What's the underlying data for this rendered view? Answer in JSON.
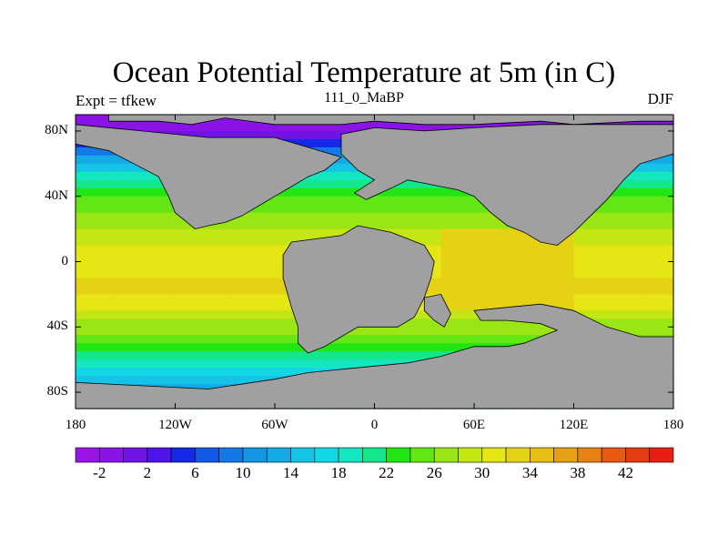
{
  "title": "Ocean Potential Temperature at 5m (in C)",
  "subtitle_left": "Expt = tfkew",
  "subtitle_center": "111_0_MaBP",
  "subtitle_right": "DJF",
  "land_color": "#a0a0a0",
  "lat_ticks": [
    {
      "lat": 80,
      "label": "80N"
    },
    {
      "lat": 40,
      "label": "40N"
    },
    {
      "lat": 0,
      "label": "0"
    },
    {
      "lat": -40,
      "label": "40S"
    },
    {
      "lat": -80,
      "label": "80S"
    }
  ],
  "lon_ticks": [
    {
      "lon": -180,
      "label": "180"
    },
    {
      "lon": -120,
      "label": "120W"
    },
    {
      "lon": -60,
      "label": "60W"
    },
    {
      "lon": 0,
      "label": "0"
    },
    {
      "lon": 60,
      "label": "60E"
    },
    {
      "lon": 120,
      "label": "120E"
    },
    {
      "lon": 180,
      "label": "180"
    }
  ],
  "colorbar": {
    "colors": [
      "#9a14e6",
      "#8a14e6",
      "#7014e6",
      "#4f14e6",
      "#1428e6",
      "#1459e6",
      "#1478e6",
      "#1496e6",
      "#14aae6",
      "#14c3e6",
      "#14d7e6",
      "#14e6c0",
      "#14e68c",
      "#22e614",
      "#62e614",
      "#9ae614",
      "#c3e614",
      "#e6e614",
      "#e6d214",
      "#e6be14",
      "#e6a014",
      "#e68214",
      "#e65a14",
      "#e63c14",
      "#e61e14"
    ],
    "labels": [
      "-2",
      "2",
      "6",
      "10",
      "14",
      "18",
      "22",
      "26",
      "30",
      "34",
      "38",
      "42"
    ]
  },
  "chart_data": {
    "type": "heatmap",
    "variable": "Ocean Potential Temperature at 5m (in C)",
    "levels_min": -4,
    "levels_step": 2,
    "levels_max": 44,
    "lon_range": [
      -180,
      180
    ],
    "lat_range": [
      -90,
      90
    ],
    "zonal_profile_sst": [
      {
        "lat": 90,
        "t": -2
      },
      {
        "lat": 80,
        "t": 0
      },
      {
        "lat": 70,
        "t": 7
      },
      {
        "lat": 60,
        "t": 14
      },
      {
        "lat": 50,
        "t": 20
      },
      {
        "lat": 40,
        "t": 24
      },
      {
        "lat": 30,
        "t": 26
      },
      {
        "lat": 20,
        "t": 28
      },
      {
        "lat": 10,
        "t": 30
      },
      {
        "lat": 0,
        "t": 31
      },
      {
        "lat": -10,
        "t": 32
      },
      {
        "lat": -20,
        "t": 32
      },
      {
        "lat": -30,
        "t": 30
      },
      {
        "lat": -40,
        "t": 27
      },
      {
        "lat": -50,
        "t": 23
      },
      {
        "lat": -60,
        "t": 19
      },
      {
        "lat": -70,
        "t": 15
      },
      {
        "lat": -80,
        "t": 12
      },
      {
        "lat": -90,
        "t": 10
      }
    ],
    "warm_pool": {
      "lon_range": [
        40,
        120
      ],
      "lat_range": [
        -30,
        20
      ],
      "t": 33
    },
    "land_masses": [
      {
        "name": "north-polar",
        "points": [
          [
            -160,
            90
          ],
          [
            -160,
            86
          ],
          [
            -130,
            86
          ],
          [
            -110,
            84
          ],
          [
            -90,
            88
          ],
          [
            -60,
            84
          ],
          [
            -20,
            84
          ],
          [
            0,
            86
          ],
          [
            30,
            84
          ],
          [
            60,
            84
          ],
          [
            100,
            86
          ],
          [
            120,
            84
          ],
          [
            160,
            86
          ],
          [
            180,
            86
          ],
          [
            180,
            90
          ]
        ]
      },
      {
        "name": "americas",
        "points": [
          [
            -180,
            84
          ],
          [
            -140,
            80
          ],
          [
            -100,
            76
          ],
          [
            -60,
            76
          ],
          [
            -40,
            70
          ],
          [
            -20,
            64
          ],
          [
            -30,
            56
          ],
          [
            -40,
            52
          ],
          [
            -50,
            46
          ],
          [
            -60,
            40
          ],
          [
            -70,
            34
          ],
          [
            -80,
            28
          ],
          [
            -90,
            24
          ],
          [
            -100,
            22
          ],
          [
            -108,
            20
          ],
          [
            -120,
            30
          ],
          [
            -124,
            40
          ],
          [
            -130,
            52
          ],
          [
            -145,
            60
          ],
          [
            -160,
            68
          ],
          [
            -180,
            72
          ]
        ]
      },
      {
        "name": "eurasia",
        "points": [
          [
            -20,
            66
          ],
          [
            -10,
            56
          ],
          [
            0,
            50
          ],
          [
            -12,
            42
          ],
          [
            -5,
            38
          ],
          [
            10,
            45
          ],
          [
            20,
            50
          ],
          [
            30,
            48
          ],
          [
            40,
            46
          ],
          [
            50,
            44
          ],
          [
            60,
            40
          ],
          [
            70,
            30
          ],
          [
            80,
            22
          ],
          [
            90,
            18
          ],
          [
            100,
            12
          ],
          [
            110,
            10
          ],
          [
            120,
            18
          ],
          [
            130,
            28
          ],
          [
            140,
            38
          ],
          [
            150,
            50
          ],
          [
            160,
            60
          ],
          [
            180,
            66
          ],
          [
            180,
            84
          ],
          [
            140,
            84
          ],
          [
            100,
            84
          ],
          [
            60,
            82
          ],
          [
            30,
            80
          ],
          [
            0,
            82
          ],
          [
            -20,
            78
          ]
        ]
      },
      {
        "name": "africa-south-america",
        "points": [
          [
            -50,
            12
          ],
          [
            -20,
            16
          ],
          [
            -10,
            22
          ],
          [
            0,
            20
          ],
          [
            10,
            18
          ],
          [
            20,
            14
          ],
          [
            30,
            10
          ],
          [
            36,
            0
          ],
          [
            34,
            -10
          ],
          [
            30,
            -22
          ],
          [
            24,
            -34
          ],
          [
            14,
            -40
          ],
          [
            -10,
            -40
          ],
          [
            -20,
            -46
          ],
          [
            -30,
            -52
          ],
          [
            -40,
            -56
          ],
          [
            -46,
            -50
          ],
          [
            -46,
            -40
          ],
          [
            -50,
            -28
          ],
          [
            -55,
            -10
          ],
          [
            -55,
            4
          ]
        ]
      },
      {
        "name": "india",
        "points": [
          [
            30,
            -22
          ],
          [
            40,
            -20
          ],
          [
            46,
            -32
          ],
          [
            42,
            -40
          ],
          [
            36,
            -36
          ],
          [
            30,
            -30
          ]
        ]
      },
      {
        "name": "australia-antarctica",
        "points": [
          [
            60,
            -30
          ],
          [
            80,
            -28
          ],
          [
            100,
            -26
          ],
          [
            120,
            -30
          ],
          [
            140,
            -40
          ],
          [
            160,
            -46
          ],
          [
            180,
            -46
          ],
          [
            180,
            -90
          ],
          [
            -180,
            -90
          ],
          [
            -180,
            -74
          ],
          [
            -140,
            -76
          ],
          [
            -100,
            -78
          ],
          [
            -60,
            -72
          ],
          [
            -40,
            -68
          ],
          [
            -20,
            -66
          ],
          [
            0,
            -64
          ],
          [
            20,
            -62
          ],
          [
            40,
            -58
          ],
          [
            60,
            -52
          ],
          [
            80,
            -52
          ],
          [
            90,
            -50
          ],
          [
            100,
            -46
          ],
          [
            110,
            -42
          ],
          [
            100,
            -38
          ],
          [
            80,
            -36
          ],
          [
            64,
            -36
          ]
        ]
      }
    ]
  }
}
